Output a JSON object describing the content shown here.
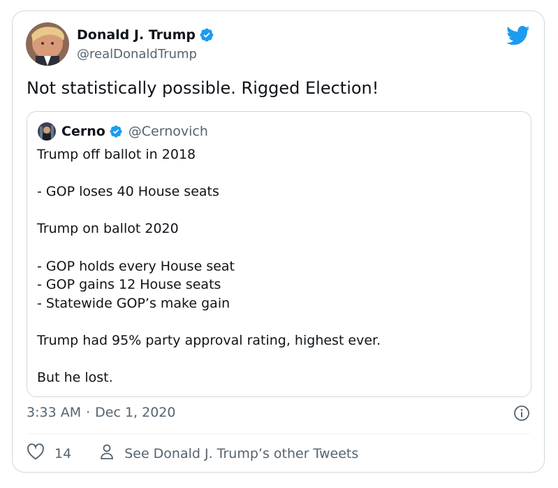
{
  "author": {
    "name": "Donald J. Trump",
    "handle": "@realDonaldTrump",
    "verified_icon": "verified-badge-icon"
  },
  "tweet": {
    "text": "Not statistically possible. Rigged Election!",
    "time": "3:33 AM",
    "separator": "·",
    "date": "Dec 1, 2020"
  },
  "quoted_tweet": {
    "name": "Cerno",
    "handle": "@Cernovich",
    "lines": [
      "Trump off ballot in 2018",
      "",
      "- GOP loses 40 House seats",
      "",
      "Trump on ballot 2020",
      "",
      "- GOP holds every House seat",
      "- GOP gains 12 House seats",
      "- Statewide GOP’s make gain",
      "",
      "Trump had 95% party approval rating, highest ever.",
      "",
      "But he lost."
    ]
  },
  "actions": {
    "like_count": "14",
    "other_tweets_label": "See Donald J. Trump’s other Tweets"
  },
  "colors": {
    "text": "#0f1419",
    "secondary": "#536471",
    "border": "#cfd9de",
    "verified": "#1d9bf0",
    "twitter_blue": "#1d9bf0"
  }
}
